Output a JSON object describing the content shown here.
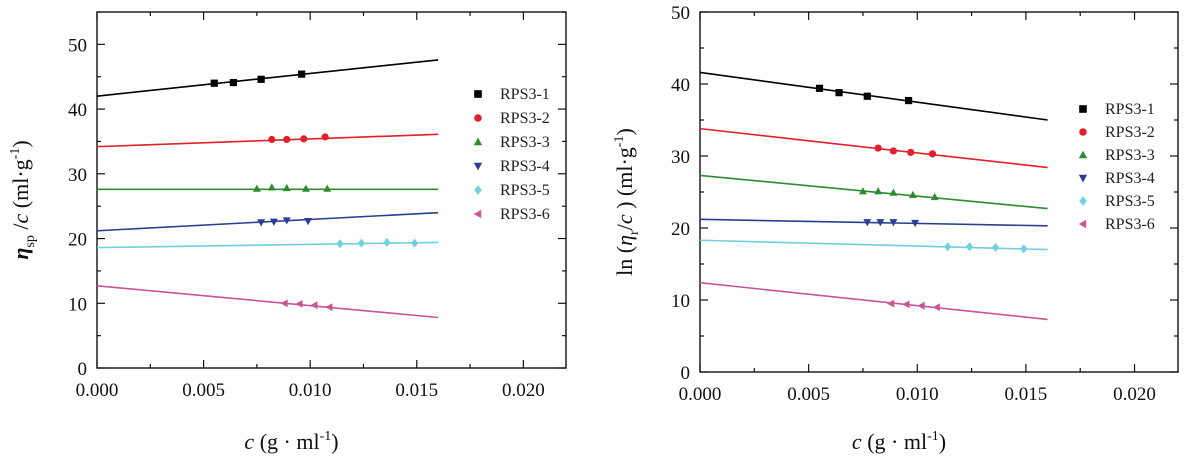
{
  "chart_data": [
    {
      "type": "scatter",
      "xlabel": {
        "main": "c",
        "rest": " (g · ml",
        "sup": "-1",
        "end": ")"
      },
      "ylabel": {
        "eta": "η",
        "sub": "sp",
        "mid": " /",
        "c": "c",
        "unit": " (ml·g",
        "sup": "-1",
        "end": ")"
      },
      "xlim": [
        0,
        0.022
      ],
      "ylim": [
        0,
        55
      ],
      "xticks": [
        "0.000",
        "0.005",
        "0.010",
        "0.015",
        "0.020"
      ],
      "xtick_values": [
        0,
        0.005,
        0.01,
        0.015,
        0.02
      ],
      "yticks": [
        "0",
        "10",
        "20",
        "30",
        "40",
        "50"
      ],
      "ytick_values": [
        0,
        10,
        20,
        30,
        40,
        50
      ],
      "legend_position": "right",
      "series": [
        {
          "name": "RPS3-1",
          "color": "#000000",
          "marker": "square",
          "x": [
            0.0055,
            0.0064,
            0.0077,
            0.0096
          ],
          "y": [
            44.0,
            44.1,
            44.6,
            45.4
          ],
          "fit": {
            "x": [
              0,
              0.016
            ],
            "y": [
              42.0,
              47.6
            ]
          }
        },
        {
          "name": "RPS3-2",
          "color": "#e3202a",
          "marker": "circle",
          "x": [
            0.0082,
            0.0089,
            0.0097,
            0.0107
          ],
          "y": [
            35.3,
            35.3,
            35.4,
            35.7
          ],
          "fit": {
            "x": [
              0,
              0.016
            ],
            "y": [
              34.2,
              36.1
            ]
          }
        },
        {
          "name": "RPS3-3",
          "color": "#2e8b2e",
          "marker": "triangle-up",
          "x": [
            0.0075,
            0.0082,
            0.0089,
            0.0098,
            0.0108
          ],
          "y": [
            27.7,
            27.9,
            27.8,
            27.7,
            27.7
          ],
          "fit": {
            "x": [
              0,
              0.016
            ],
            "y": [
              27.6,
              27.6
            ]
          }
        },
        {
          "name": "RPS3-4",
          "color": "#2a3f8f",
          "marker": "triangle-down",
          "x": [
            0.0077,
            0.0083,
            0.0089,
            0.0099
          ],
          "y": [
            22.5,
            22.6,
            22.8,
            22.7
          ],
          "fit": {
            "x": [
              0,
              0.016
            ],
            "y": [
              21.2,
              24.0
            ]
          }
        },
        {
          "name": "RPS3-5",
          "color": "#6fd0e0",
          "marker": "diamond",
          "x": [
            0.0114,
            0.0124,
            0.0136,
            0.0149
          ],
          "y": [
            19.2,
            19.3,
            19.4,
            19.3
          ],
          "fit": {
            "x": [
              0,
              0.016
            ],
            "y": [
              18.6,
              19.4
            ]
          }
        },
        {
          "name": "RPS3-6",
          "color": "#c9549a",
          "marker": "triangle-left",
          "x": [
            0.0088,
            0.0095,
            0.0102,
            0.0109
          ],
          "y": [
            10.0,
            9.9,
            9.7,
            9.4
          ],
          "fit": {
            "x": [
              0,
              0.016
            ],
            "y": [
              12.7,
              7.8
            ]
          }
        }
      ]
    },
    {
      "type": "scatter",
      "xlabel": {
        "main": "c",
        "rest": " (g · ml",
        "sup": "-1",
        "end": ")"
      },
      "ylabel": {
        "pre": "ln (",
        "eta": "η",
        "sub": "r",
        "mid": "/",
        "c": "c",
        "unit": " )  (ml·g",
        "sup": "-1",
        "end": ")"
      },
      "xlim": [
        0,
        0.022
      ],
      "ylim": [
        0,
        50
      ],
      "xticks": [
        "0.000",
        "0.005",
        "0.010",
        "0.015",
        "0.020"
      ],
      "xtick_values": [
        0,
        0.005,
        0.01,
        0.015,
        0.02
      ],
      "yticks": [
        "0",
        "10",
        "20",
        "30",
        "40",
        "50"
      ],
      "ytick_values": [
        0,
        10,
        20,
        30,
        40,
        50
      ],
      "legend_position": "right",
      "series": [
        {
          "name": "RPS3-1",
          "color": "#000000",
          "marker": "square",
          "x": [
            0.0055,
            0.0064,
            0.0077,
            0.0096
          ],
          "y": [
            39.4,
            38.8,
            38.3,
            37.7
          ],
          "fit": {
            "x": [
              0,
              0.016
            ],
            "y": [
              41.6,
              35.0
            ]
          }
        },
        {
          "name": "RPS3-2",
          "color": "#e3202a",
          "marker": "circle",
          "x": [
            0.0082,
            0.0089,
            0.0097,
            0.0107
          ],
          "y": [
            31.1,
            30.7,
            30.5,
            30.3
          ],
          "fit": {
            "x": [
              0,
              0.016
            ],
            "y": [
              33.8,
              28.4
            ]
          }
        },
        {
          "name": "RPS3-3",
          "color": "#2e8b2e",
          "marker": "triangle-up",
          "x": [
            0.0075,
            0.0082,
            0.0089,
            0.0098,
            0.0108
          ],
          "y": [
            25.1,
            25.1,
            24.9,
            24.6,
            24.3
          ],
          "fit": {
            "x": [
              0,
              0.016
            ],
            "y": [
              27.3,
              22.7
            ]
          }
        },
        {
          "name": "RPS3-4",
          "color": "#2a3f8f",
          "marker": "triangle-down",
          "x": [
            0.0077,
            0.0083,
            0.0089,
            0.0099
          ],
          "y": [
            20.8,
            20.8,
            20.8,
            20.7
          ],
          "fit": {
            "x": [
              0,
              0.016
            ],
            "y": [
              21.2,
              20.3
            ]
          }
        },
        {
          "name": "RPS3-5",
          "color": "#6fd0e0",
          "marker": "diamond",
          "x": [
            0.0114,
            0.0124,
            0.0136,
            0.0149
          ],
          "y": [
            17.4,
            17.4,
            17.3,
            17.1
          ],
          "fit": {
            "x": [
              0,
              0.016
            ],
            "y": [
              18.3,
              17.0
            ]
          }
        },
        {
          "name": "RPS3-6",
          "color": "#c9549a",
          "marker": "triangle-left",
          "x": [
            0.0088,
            0.0095,
            0.0102,
            0.0109
          ],
          "y": [
            9.5,
            9.4,
            9.2,
            9.0
          ],
          "fit": {
            "x": [
              0,
              0.016
            ],
            "y": [
              12.4,
              7.3
            ]
          }
        }
      ]
    }
  ]
}
